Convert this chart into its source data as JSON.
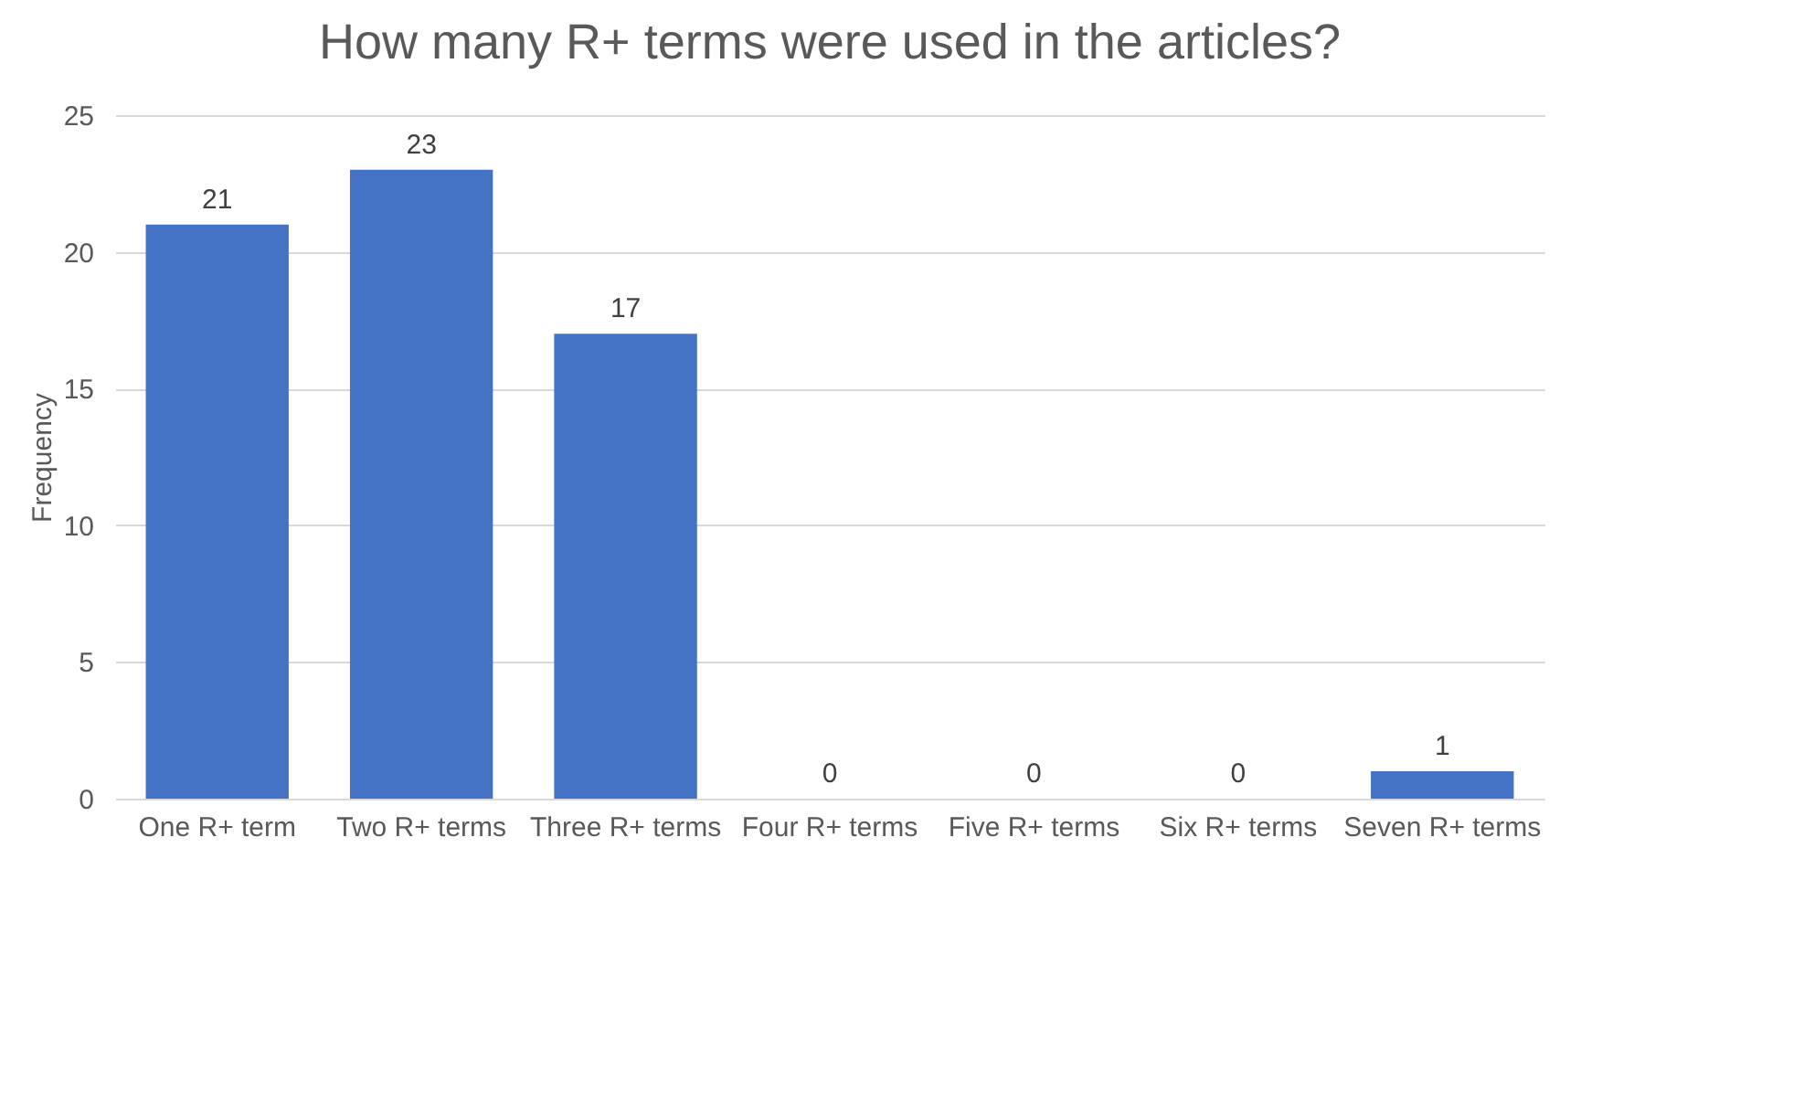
{
  "chart_data": {
    "type": "bar",
    "title": "How many R+ terms were used in the articles?",
    "ylabel": "Frequency",
    "categories": [
      "One R+ term",
      "Two R+ terms",
      "Three R+ terms",
      "Four R+ terms",
      "Five R+ terms",
      "Six R+ terms",
      "Seven R+ terms"
    ],
    "values": [
      21,
      23,
      17,
      0,
      0,
      0,
      1
    ],
    "color": "#4472c4",
    "ylim": [
      0,
      25
    ],
    "yticks": [
      0,
      5,
      10,
      15,
      20,
      25
    ],
    "grid": "y",
    "data_labels": true
  }
}
